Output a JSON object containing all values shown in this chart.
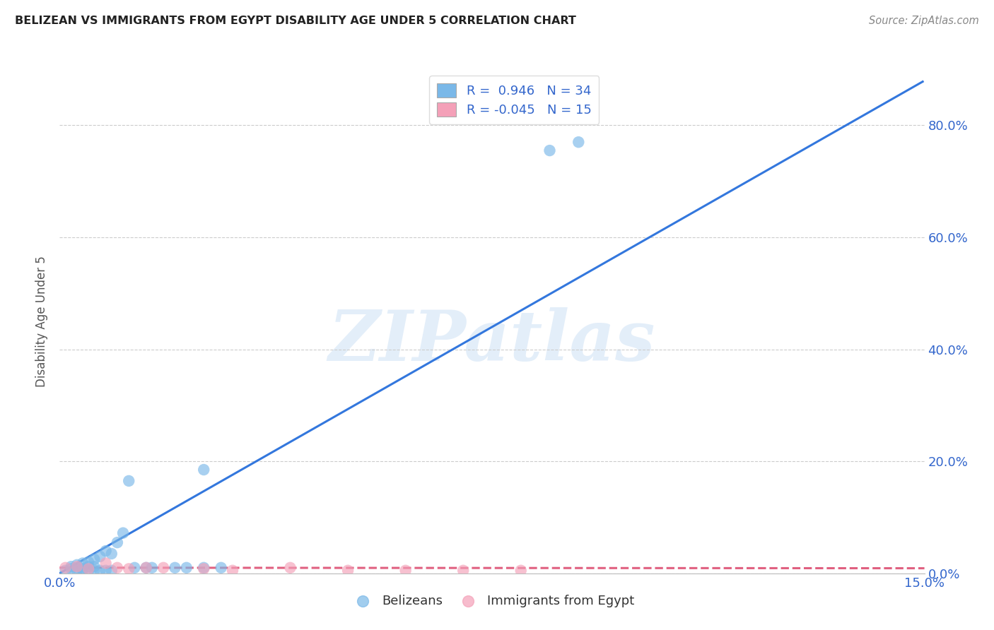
{
  "title": "BELIZEAN VS IMMIGRANTS FROM EGYPT DISABILITY AGE UNDER 5 CORRELATION CHART",
  "source": "Source: ZipAtlas.com",
  "ylabel": "Disability Age Under 5",
  "xlim": [
    0.0,
    0.15
  ],
  "ylim": [
    0.0,
    0.9
  ],
  "x_tick_labels": [
    "0.0%",
    "15.0%"
  ],
  "y_tick_labels": [
    "0.0%",
    "20.0%",
    "40.0%",
    "60.0%",
    "80.0%"
  ],
  "watermark": "ZIPatlas",
  "legend_R1": "0.946",
  "legend_N1": "34",
  "legend_R2": "-0.045",
  "legend_N2": "15",
  "blue_color": "#7ab8e8",
  "pink_color": "#f4a0b8",
  "line_blue": "#3377dd",
  "line_pink": "#e06080",
  "title_color": "#222222",
  "axis_color": "#3366cc",
  "grid_color": "#cccccc",
  "belizean_x": [
    0.001,
    0.002,
    0.002,
    0.003,
    0.003,
    0.004,
    0.004,
    0.005,
    0.005,
    0.006,
    0.006,
    0.007,
    0.008,
    0.009,
    0.01,
    0.011,
    0.012,
    0.013,
    0.015,
    0.016,
    0.02,
    0.022,
    0.025,
    0.028,
    0.003,
    0.004,
    0.005,
    0.006,
    0.007,
    0.008,
    0.009,
    0.025,
    0.085,
    0.09
  ],
  "belizean_y": [
    0.005,
    0.008,
    0.012,
    0.01,
    0.015,
    0.008,
    0.018,
    0.012,
    0.02,
    0.025,
    0.012,
    0.03,
    0.04,
    0.035,
    0.055,
    0.072,
    0.165,
    0.01,
    0.01,
    0.01,
    0.01,
    0.01,
    0.01,
    0.01,
    0.005,
    0.005,
    0.005,
    0.005,
    0.005,
    0.005,
    0.005,
    0.185,
    0.755,
    0.77
  ],
  "egypt_x": [
    0.001,
    0.003,
    0.005,
    0.008,
    0.01,
    0.012,
    0.015,
    0.018,
    0.025,
    0.03,
    0.04,
    0.05,
    0.06,
    0.07,
    0.08
  ],
  "egypt_y": [
    0.01,
    0.012,
    0.008,
    0.018,
    0.01,
    0.008,
    0.01,
    0.01,
    0.008,
    0.005,
    0.01,
    0.005,
    0.005,
    0.005,
    0.005
  ],
  "blue_line_x": [
    0.0,
    0.1497
  ],
  "blue_line_y": [
    0.0,
    0.878
  ],
  "pink_line_x": [
    0.0,
    0.15
  ],
  "pink_line_y": [
    0.01,
    0.009
  ]
}
